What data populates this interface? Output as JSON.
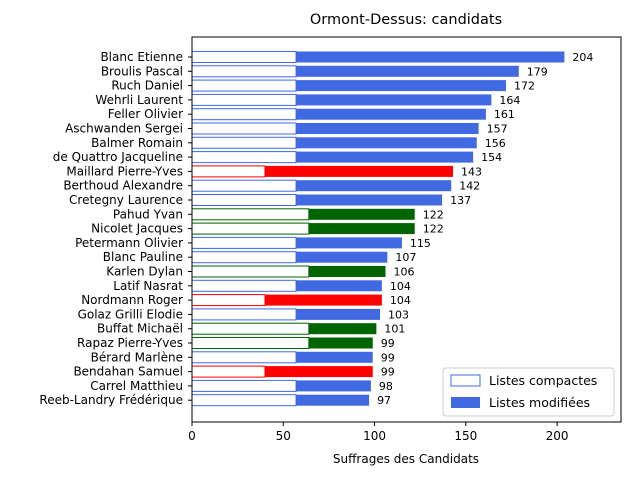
{
  "chart_data": {
    "type": "bar",
    "orientation": "horizontal",
    "stacked": true,
    "title": "Ormont-Dessus: candidats",
    "xlabel": "Suffrages des Candidats",
    "ylabel": "",
    "xlim": [
      0,
      235
    ],
    "xticks": [
      0,
      50,
      100,
      150,
      200
    ],
    "grid": false,
    "legend_position": "lower right",
    "categories": [
      "Blanc Etienne",
      "Broulis Pascal",
      "Ruch Daniel",
      "Wehrli Laurent",
      "Feller Olivier",
      "Aschwanden Sergei",
      "Balmer Romain",
      "de Quattro Jacqueline",
      "Maillard Pierre-Yves",
      "Berthoud Alexandre",
      "Cretegny Laurence",
      "Pahud Yvan",
      "Nicolet Jacques",
      "Petermann Olivier",
      "Blanc Pauline",
      "Karlen Dylan",
      "Latif Nasrat",
      "Nordmann Roger",
      "Golaz Grilli Elodie",
      "Buffat Michaël",
      "Rapaz Pierre-Yves",
      "Bérard Marlène",
      "Bendahan Samuel",
      "Carrel Matthieu",
      "Reeb-Landry Frédérique"
    ],
    "totals": [
      204,
      179,
      172,
      164,
      161,
      157,
      156,
      154,
      143,
      142,
      137,
      122,
      122,
      115,
      107,
      106,
      104,
      104,
      103,
      101,
      99,
      99,
      99,
      98,
      97
    ],
    "series": [
      {
        "name": "Listes compactes",
        "style": "outline",
        "values": [
          57,
          57,
          57,
          57,
          57,
          57,
          57,
          57,
          40,
          57,
          57,
          64,
          64,
          57,
          57,
          64,
          57,
          40,
          57,
          64,
          64,
          57,
          40,
          57,
          57
        ]
      },
      {
        "name": "Listes modifiées",
        "style": "filled",
        "values": [
          147,
          122,
          115,
          107,
          104,
          100,
          99,
          97,
          103,
          85,
          80,
          58,
          58,
          58,
          50,
          42,
          47,
          64,
          46,
          37,
          35,
          42,
          59,
          41,
          40
        ]
      }
    ],
    "bar_colors": [
      "#4169e1",
      "#4169e1",
      "#4169e1",
      "#4169e1",
      "#4169e1",
      "#4169e1",
      "#4169e1",
      "#4169e1",
      "#ff0000",
      "#4169e1",
      "#4169e1",
      "#006400",
      "#006400",
      "#4169e1",
      "#4169e1",
      "#006400",
      "#4169e1",
      "#ff0000",
      "#4169e1",
      "#006400",
      "#006400",
      "#4169e1",
      "#ff0000",
      "#4169e1",
      "#4169e1"
    ],
    "legend_color": "#4169e1"
  }
}
